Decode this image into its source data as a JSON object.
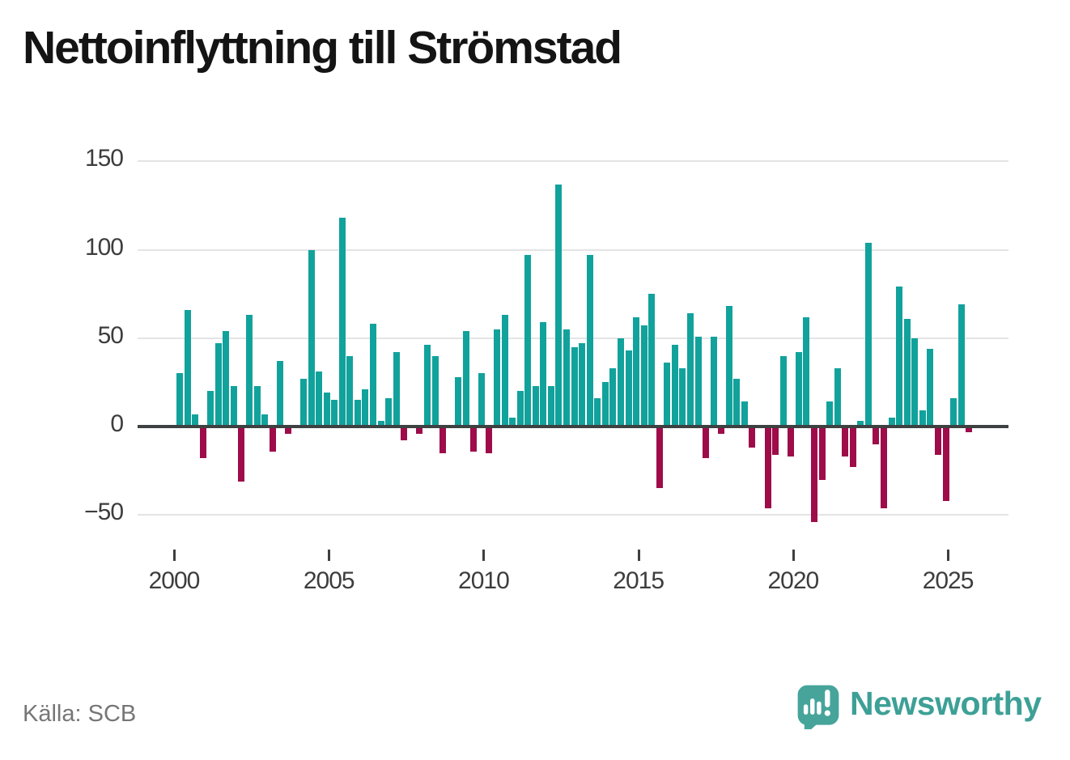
{
  "title": "Nettoinflyttning till Strömstad",
  "source": {
    "label": "Källa: SCB"
  },
  "branding": {
    "name": "Newsworthy",
    "icon": "newsworthy-speech-bubble-chart-icon",
    "icon_color": "#46a49b",
    "text_color": "#3da096"
  },
  "chart_data": {
    "type": "bar",
    "title": "Nettoinflyttning till Strömstad",
    "xlabel": "",
    "ylabel": "",
    "grid": true,
    "legend": false,
    "ylim": [
      -60,
      150
    ],
    "yticks": [
      150,
      100,
      50,
      0,
      -50
    ],
    "ytick_labels": [
      "150",
      "100",
      "50",
      "0",
      "−50"
    ],
    "xtick_years": [
      2000,
      2005,
      2010,
      2015,
      2020,
      2025
    ],
    "bar_colors": {
      "positive": "#12a29c",
      "negative": "#9e0c49"
    },
    "x": [
      "2000Q1",
      "2000Q2",
      "2000Q3",
      "2000Q4",
      "2001Q1",
      "2001Q2",
      "2001Q3",
      "2001Q4",
      "2002Q1",
      "2002Q2",
      "2002Q3",
      "2002Q4",
      "2003Q1",
      "2003Q2",
      "2003Q3",
      "2003Q4",
      "2004Q1",
      "2004Q2",
      "2004Q3",
      "2004Q4",
      "2005Q1",
      "2005Q2",
      "2005Q3",
      "2005Q4",
      "2006Q1",
      "2006Q2",
      "2006Q3",
      "2006Q4",
      "2007Q1",
      "2007Q2",
      "2007Q3",
      "2007Q4",
      "2008Q1",
      "2008Q2",
      "2008Q3",
      "2008Q4",
      "2009Q1",
      "2009Q2",
      "2009Q3",
      "2009Q4",
      "2010Q1",
      "2010Q2",
      "2010Q3",
      "2010Q4",
      "2011Q1",
      "2011Q2",
      "2011Q3",
      "2011Q4",
      "2012Q1",
      "2012Q2",
      "2012Q3",
      "2012Q4",
      "2013Q1",
      "2013Q2",
      "2013Q3",
      "2013Q4",
      "2014Q1",
      "2014Q2",
      "2014Q3",
      "2014Q4",
      "2015Q1",
      "2015Q2",
      "2015Q3",
      "2015Q4",
      "2016Q1",
      "2016Q2",
      "2016Q3",
      "2016Q4",
      "2017Q1",
      "2017Q2",
      "2017Q3",
      "2017Q4",
      "2018Q1",
      "2018Q2",
      "2018Q3",
      "2018Q4",
      "2019Q1",
      "2019Q2",
      "2019Q3",
      "2019Q4",
      "2020Q1",
      "2020Q2",
      "2020Q3",
      "2020Q4",
      "2021Q1",
      "2021Q2",
      "2021Q3",
      "2021Q4",
      "2022Q1",
      "2022Q2",
      "2022Q3",
      "2022Q4",
      "2023Q1",
      "2023Q2",
      "2023Q3",
      "2023Q4",
      "2024Q1",
      "2024Q2",
      "2024Q3",
      "2024Q4",
      "2025Q1",
      "2025Q2",
      "2025Q3"
    ],
    "values": [
      30,
      66,
      7,
      -18,
      20,
      47,
      54,
      23,
      -31,
      63,
      23,
      7,
      -14,
      37,
      -4,
      0,
      27,
      100,
      31,
      19,
      15,
      118,
      40,
      15,
      21,
      58,
      3,
      16,
      42,
      -8,
      0,
      -4,
      46,
      40,
      -15,
      0,
      28,
      54,
      -14,
      30,
      -15,
      55,
      63,
      5,
      20,
      97,
      23,
      59,
      23,
      137,
      55,
      45,
      47,
      97,
      16,
      25,
      33,
      50,
      43,
      62,
      57,
      75,
      -35,
      36,
      46,
      33,
      64,
      51,
      -18,
      51,
      -4,
      68,
      27,
      14,
      -12,
      0,
      -46,
      -16,
      40,
      -17,
      42,
      62,
      -54,
      -30,
      14,
      33,
      -17,
      -23,
      3,
      104,
      -10,
      -46,
      5,
      79,
      61,
      50,
      9,
      44,
      -16,
      -42,
      16,
      69,
      -3
    ]
  }
}
